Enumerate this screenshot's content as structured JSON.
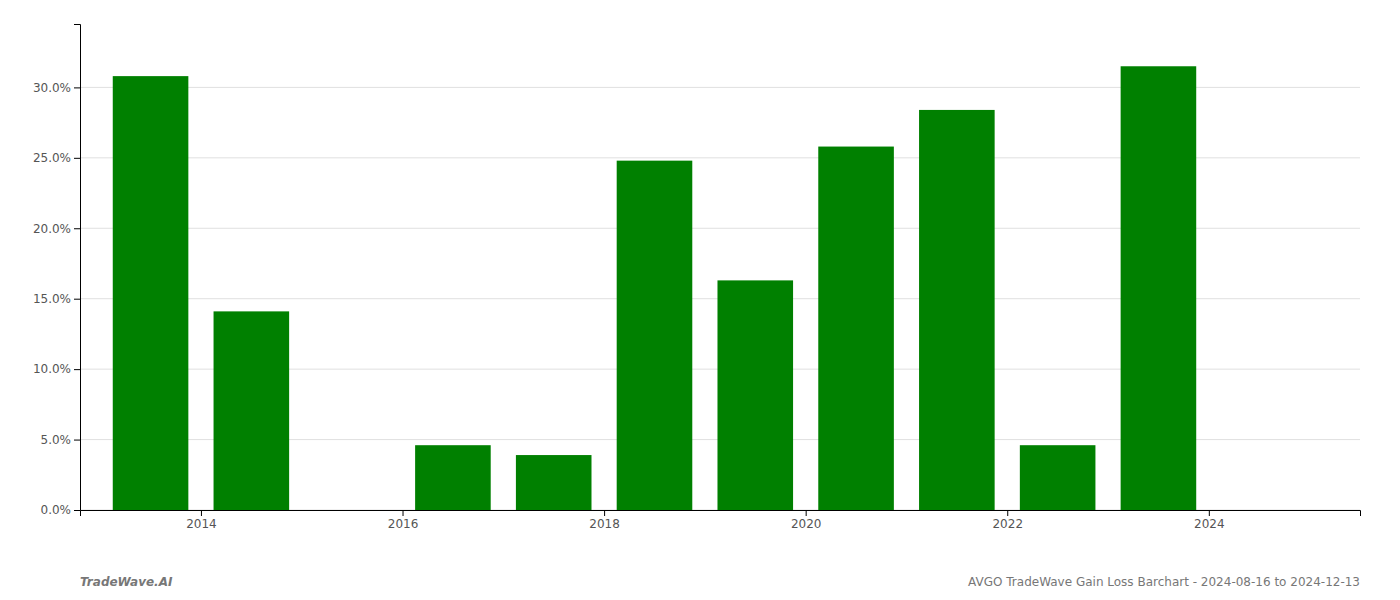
{
  "chart_data": {
    "type": "bar",
    "title": "AVGO TradeWave Gain Loss Barchart - 2024-08-16 to 2024-12-13",
    "annotations": [
      "TradeWave.AI"
    ],
    "x": [
      2013,
      2014,
      2016,
      2017,
      2018,
      2019,
      2020,
      2021,
      2022,
      2023
    ],
    "values": [
      0.308,
      0.141,
      0.046,
      0.039,
      0.248,
      0.163,
      0.258,
      0.284,
      0.046,
      0.315
    ],
    "color": "#008000",
    "xlim": [
      2012.3,
      2025.0
    ],
    "xticks": [
      {
        "value": 2013.5,
        "label": "2014"
      },
      {
        "value": 2015.5,
        "label": "2016"
      },
      {
        "value": 2017.5,
        "label": "2018"
      },
      {
        "value": 2019.5,
        "label": "2020"
      },
      {
        "value": 2021.5,
        "label": "2022"
      },
      {
        "value": 2023.5,
        "label": "2024"
      }
    ],
    "ylim": [
      0.0,
      0.345
    ],
    "yticks": [
      {
        "value": 0.0,
        "label": "0.0%"
      },
      {
        "value": 0.05,
        "label": "5.0%"
      },
      {
        "value": 0.1,
        "label": "10.0%"
      },
      {
        "value": 0.15,
        "label": "15.0%"
      },
      {
        "value": 0.2,
        "label": "20.0%"
      },
      {
        "value": 0.25,
        "label": "25.0%"
      },
      {
        "value": 0.3,
        "label": "30.0%"
      }
    ],
    "grid": true
  }
}
